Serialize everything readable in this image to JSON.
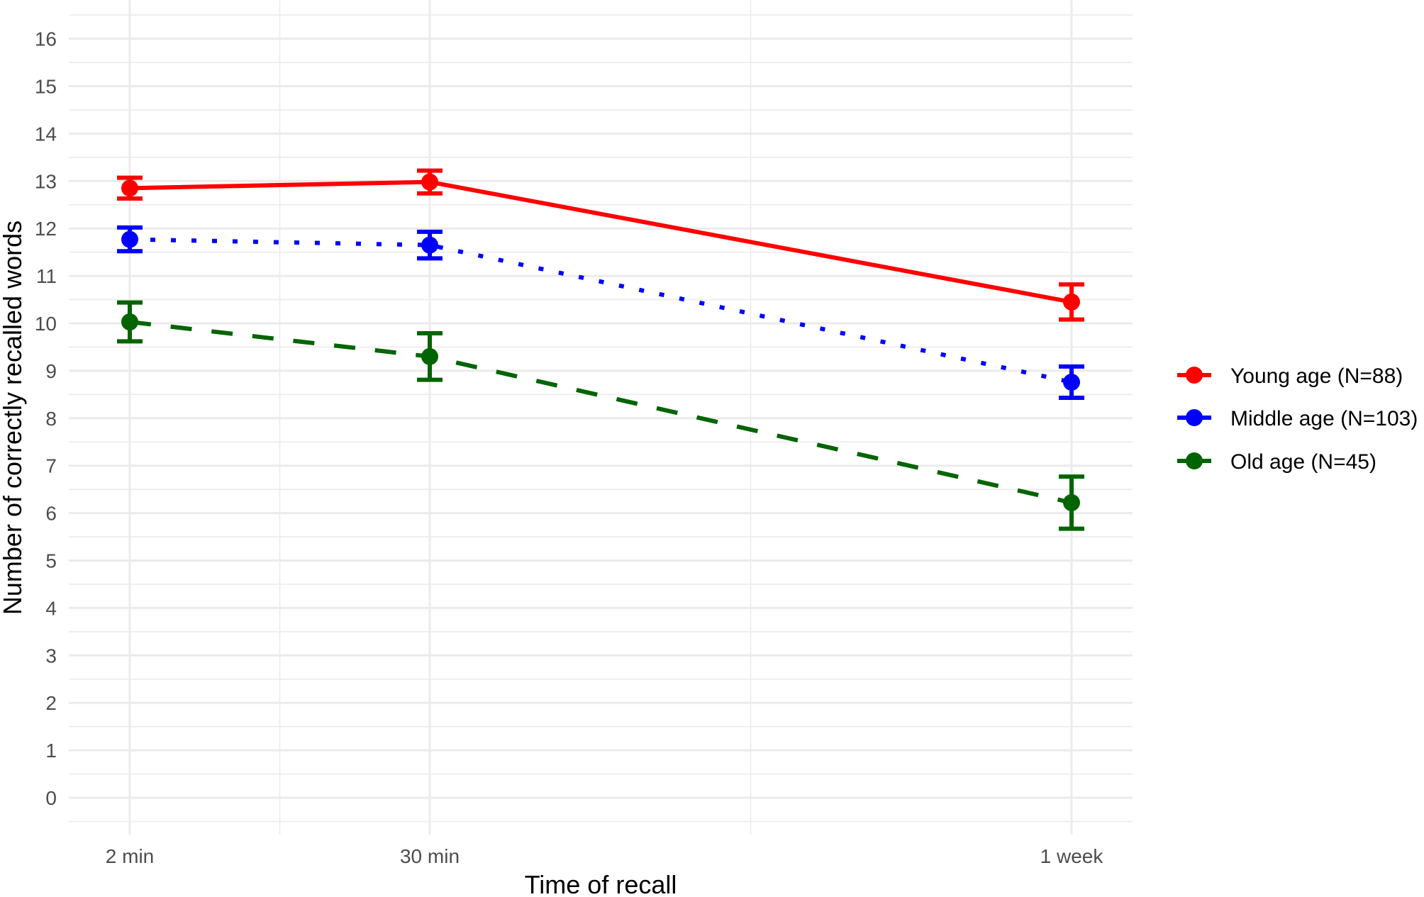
{
  "chart_data": {
    "type": "line",
    "title": "",
    "xlabel": "Time of recall",
    "ylabel": "Number of correctly recalled words",
    "categories": [
      "2 min",
      "30 min",
      "1 week"
    ],
    "x_scale": "log",
    "ylim": [
      -0.5,
      16.5
    ],
    "y_ticks": [
      0,
      1,
      2,
      3,
      4,
      5,
      6,
      7,
      8,
      9,
      10,
      11,
      12,
      13,
      14,
      15,
      16
    ],
    "grid": true,
    "legend_position": "right",
    "error_bars": true,
    "series": [
      {
        "name": "Young age (N=88)",
        "color": "#ff0000",
        "linestyle": "solid",
        "values": [
          12.85,
          12.98,
          10.45
        ],
        "error": [
          0.22,
          0.24,
          0.37
        ]
      },
      {
        "name": "Middle age (N=103)",
        "color": "#0000ff",
        "linestyle": "dotted",
        "values": [
          11.77,
          11.65,
          8.76
        ],
        "error": [
          0.25,
          0.28,
          0.33
        ]
      },
      {
        "name": "Old age (N=45)",
        "color": "#006400",
        "linestyle": "dashed",
        "values": [
          10.03,
          9.3,
          6.22
        ],
        "error": [
          0.41,
          0.49,
          0.55
        ]
      }
    ]
  },
  "axes": {
    "x_title": "Time of recall",
    "y_title": "Number of correctly recalled words"
  },
  "legend": {
    "items": [
      {
        "label": "Young age (N=88)",
        "color": "#ff0000"
      },
      {
        "label": "Middle age (N=103)",
        "color": "#0000ff"
      },
      {
        "label": "Old age (N=45)",
        "color": "#006400"
      }
    ]
  }
}
